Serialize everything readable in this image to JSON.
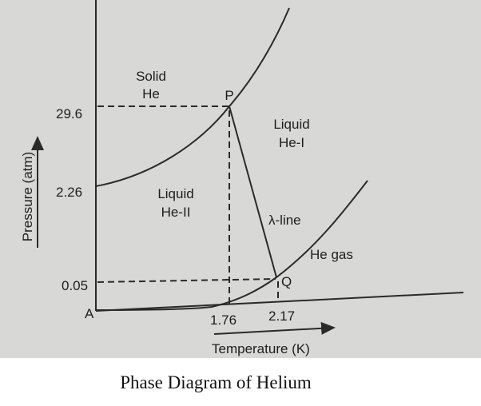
{
  "axes": {
    "y_label": "Pressure (atm)",
    "x_label": "Temperature (K)",
    "origin": "A",
    "y_ticks": [
      "29.6",
      "2.26",
      "0.05"
    ],
    "x_ticks": [
      "1.76",
      "2.17"
    ]
  },
  "points": {
    "triple_upper": "P",
    "triple_lower": "Q"
  },
  "regions": {
    "solid": [
      "Solid",
      "He"
    ],
    "liquid_1": [
      "Liquid",
      "He-I"
    ],
    "liquid_2": [
      "Liquid",
      "He-II"
    ],
    "gas": "He gas"
  },
  "lambda_line": "λ-line",
  "caption": "Phase Diagram of Helium"
}
